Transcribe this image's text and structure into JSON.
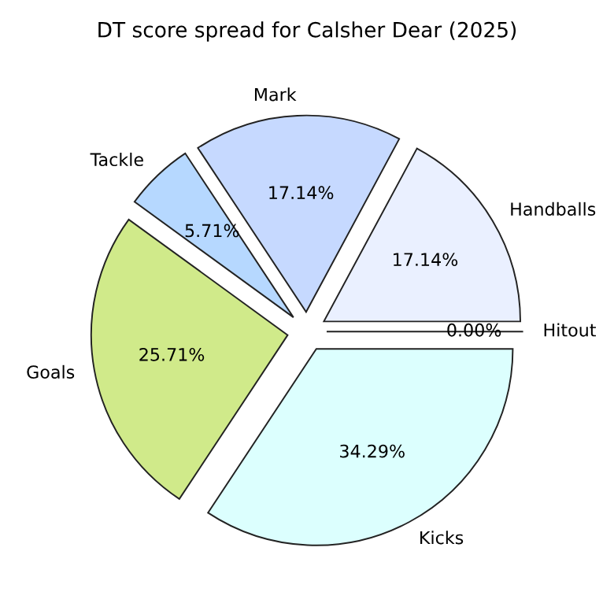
{
  "chart_data": {
    "type": "pie",
    "title": "DT score spread for Calsher Dear (2025)",
    "categories": [
      "Hitout",
      "Handballs",
      "Mark",
      "Tackle",
      "Goals",
      "Kicks"
    ],
    "values": [
      0.0,
      17.14,
      17.14,
      5.71,
      25.71,
      34.29
    ],
    "value_labels": [
      "0.00%",
      "17.14%",
      "17.14%",
      "5.71%",
      "25.71%",
      "34.29%"
    ],
    "colors": [
      "#f0f4ff",
      "#eaf0ff",
      "#c6d9ff",
      "#b6d8ff",
      "#d0ea8a",
      "#dcfffe"
    ]
  }
}
